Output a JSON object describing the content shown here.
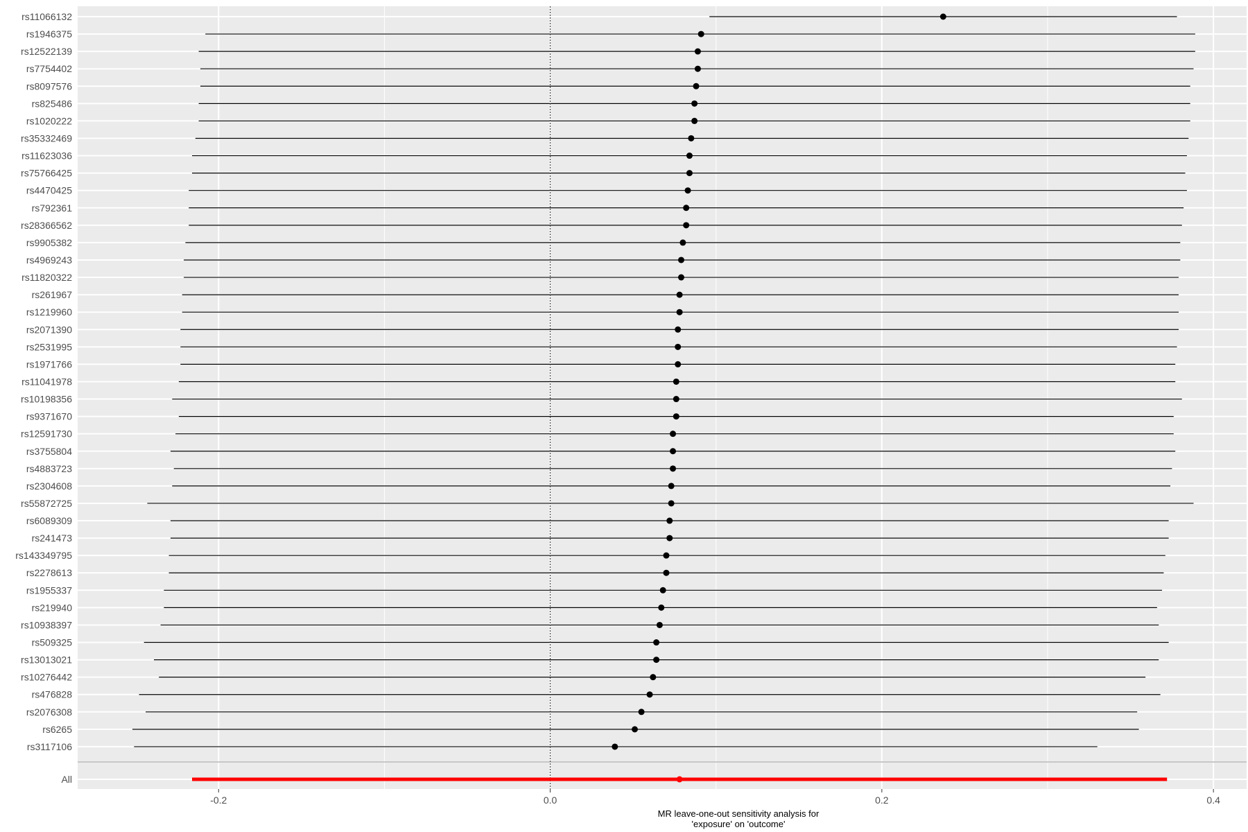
{
  "chart_data": {
    "type": "forest",
    "xlabel": "MR leave-one-out sensitivity analysis for\n'exposure' on 'outcome'",
    "ylabel": "",
    "xlim": [
      -0.285,
      0.42
    ],
    "x_ticks": [
      -0.2,
      0.0,
      0.2,
      0.4
    ],
    "x_tick_labels": [
      "-0.2",
      "0.0",
      "0.2",
      "0.4"
    ],
    "reference_line": 0.0,
    "grid": true,
    "rows": [
      {
        "snp": "rs11066132",
        "b": 0.237,
        "lo": 0.096,
        "hi": 0.378
      },
      {
        "snp": "rs1946375",
        "b": 0.091,
        "lo": -0.208,
        "hi": 0.389
      },
      {
        "snp": "rs12522139",
        "b": 0.089,
        "lo": -0.212,
        "hi": 0.389
      },
      {
        "snp": "rs7754402",
        "b": 0.089,
        "lo": -0.211,
        "hi": 0.388
      },
      {
        "snp": "rs8097576",
        "b": 0.088,
        "lo": -0.211,
        "hi": 0.386
      },
      {
        "snp": "rs825486",
        "b": 0.087,
        "lo": -0.212,
        "hi": 0.386
      },
      {
        "snp": "rs1020222",
        "b": 0.087,
        "lo": -0.212,
        "hi": 0.386
      },
      {
        "snp": "rs35332469",
        "b": 0.085,
        "lo": -0.214,
        "hi": 0.385
      },
      {
        "snp": "rs11623036",
        "b": 0.084,
        "lo": -0.216,
        "hi": 0.384
      },
      {
        "snp": "rs75766425",
        "b": 0.084,
        "lo": -0.216,
        "hi": 0.383
      },
      {
        "snp": "rs4470425",
        "b": 0.083,
        "lo": -0.218,
        "hi": 0.384
      },
      {
        "snp": "rs792361",
        "b": 0.082,
        "lo": -0.218,
        "hi": 0.382
      },
      {
        "snp": "rs28366562",
        "b": 0.082,
        "lo": -0.218,
        "hi": 0.381
      },
      {
        "snp": "rs9905382",
        "b": 0.08,
        "lo": -0.22,
        "hi": 0.38
      },
      {
        "snp": "rs4969243",
        "b": 0.079,
        "lo": -0.221,
        "hi": 0.38
      },
      {
        "snp": "rs11820322",
        "b": 0.079,
        "lo": -0.221,
        "hi": 0.379
      },
      {
        "snp": "rs261967",
        "b": 0.078,
        "lo": -0.222,
        "hi": 0.379
      },
      {
        "snp": "rs1219960",
        "b": 0.078,
        "lo": -0.222,
        "hi": 0.379
      },
      {
        "snp": "rs2071390",
        "b": 0.077,
        "lo": -0.223,
        "hi": 0.379
      },
      {
        "snp": "rs2531995",
        "b": 0.077,
        "lo": -0.223,
        "hi": 0.378
      },
      {
        "snp": "rs1971766",
        "b": 0.077,
        "lo": -0.223,
        "hi": 0.377
      },
      {
        "snp": "rs11041978",
        "b": 0.076,
        "lo": -0.224,
        "hi": 0.377
      },
      {
        "snp": "rs10198356",
        "b": 0.076,
        "lo": -0.228,
        "hi": 0.381
      },
      {
        "snp": "rs9371670",
        "b": 0.076,
        "lo": -0.224,
        "hi": 0.376
      },
      {
        "snp": "rs12591730",
        "b": 0.074,
        "lo": -0.226,
        "hi": 0.376
      },
      {
        "snp": "rs3755804",
        "b": 0.074,
        "lo": -0.229,
        "hi": 0.377
      },
      {
        "snp": "rs4883723",
        "b": 0.074,
        "lo": -0.227,
        "hi": 0.375
      },
      {
        "snp": "rs2304608",
        "b": 0.073,
        "lo": -0.228,
        "hi": 0.374
      },
      {
        "snp": "rs55872725",
        "b": 0.073,
        "lo": -0.243,
        "hi": 0.388
      },
      {
        "snp": "rs6089309",
        "b": 0.072,
        "lo": -0.229,
        "hi": 0.373
      },
      {
        "snp": "rs241473",
        "b": 0.072,
        "lo": -0.229,
        "hi": 0.373
      },
      {
        "snp": "rs143349795",
        "b": 0.07,
        "lo": -0.23,
        "hi": 0.371
      },
      {
        "snp": "rs2278613",
        "b": 0.07,
        "lo": -0.23,
        "hi": 0.37
      },
      {
        "snp": "rs1955337",
        "b": 0.068,
        "lo": -0.233,
        "hi": 0.369
      },
      {
        "snp": "rs219940",
        "b": 0.067,
        "lo": -0.233,
        "hi": 0.366
      },
      {
        "snp": "rs10938397",
        "b": 0.066,
        "lo": -0.235,
        "hi": 0.367
      },
      {
        "snp": "rs509325",
        "b": 0.064,
        "lo": -0.245,
        "hi": 0.373
      },
      {
        "snp": "rs13013021",
        "b": 0.064,
        "lo": -0.239,
        "hi": 0.367
      },
      {
        "snp": "rs10276442",
        "b": 0.062,
        "lo": -0.236,
        "hi": 0.359
      },
      {
        "snp": "rs476828",
        "b": 0.06,
        "lo": -0.248,
        "hi": 0.368
      },
      {
        "snp": "rs2076308",
        "b": 0.055,
        "lo": -0.244,
        "hi": 0.354
      },
      {
        "snp": "rs6265",
        "b": 0.051,
        "lo": -0.252,
        "hi": 0.355
      },
      {
        "snp": "rs3117106",
        "b": 0.039,
        "lo": -0.251,
        "hi": 0.33
      }
    ],
    "overall": {
      "snp": "All",
      "b": 0.078,
      "lo": -0.216,
      "hi": 0.372
    },
    "colors": {
      "panel": "#ebebeb",
      "grid": "#ffffff",
      "snp_marks": "#000000",
      "overall_marks": "#ff0000",
      "divider": "#c7c7c7",
      "reference_line": "#444444"
    }
  }
}
